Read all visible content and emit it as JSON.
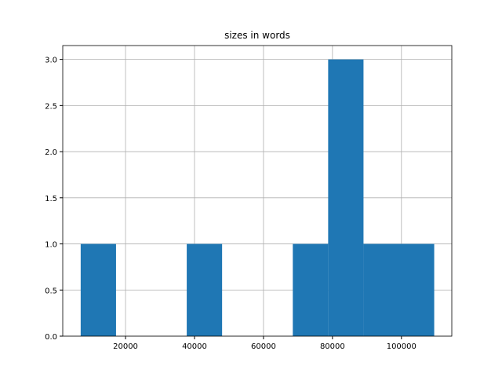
{
  "chart_data": {
    "type": "histogram",
    "title": "sizes in words",
    "bins": [
      7000,
      17250,
      27500,
      37750,
      48000,
      58250,
      68500,
      78750,
      89000,
      99250,
      109500
    ],
    "values": [
      1,
      0,
      0,
      1,
      0,
      0,
      1,
      3,
      1,
      1
    ],
    "color": "#1f77b4",
    "xlim": [
      1800,
      114600
    ],
    "ylim": [
      0,
      3.15
    ],
    "xticks": [
      20000,
      40000,
      60000,
      80000,
      100000
    ],
    "yticks": [
      {
        "value": 0,
        "label": "0.0"
      },
      {
        "value": 0.5,
        "label": "0.5"
      },
      {
        "value": 1,
        "label": "1.0"
      },
      {
        "value": 1.5,
        "label": "1.5"
      },
      {
        "value": 2,
        "label": "2.0"
      },
      {
        "value": 2.5,
        "label": "2.5"
      },
      {
        "value": 3,
        "label": "3.0"
      }
    ],
    "grid": true
  }
}
